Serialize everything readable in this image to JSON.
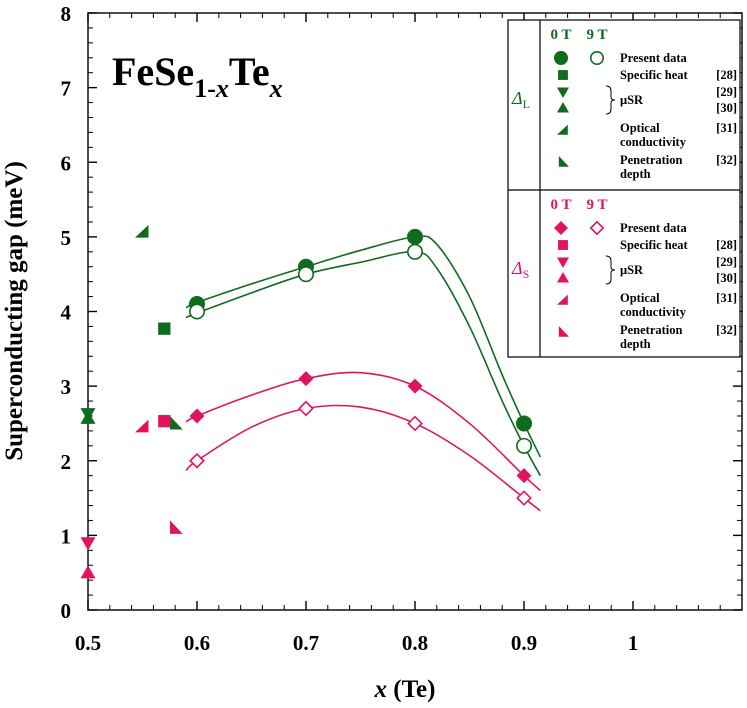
{
  "chart_data": {
    "type": "scatter",
    "title": "FeSe1-xTex",
    "title_parts": {
      "base": "FeSe",
      "sub1": "1-",
      "subx": "x",
      "te": "Te",
      "sub2": "x"
    },
    "xlabel": {
      "var": "x",
      "rest": " (Te)"
    },
    "ylabel": "Superconducting gap (meV)",
    "xlim": [
      0.5,
      1.1
    ],
    "ylim": [
      0,
      8
    ],
    "x_ticks": [
      "0.5",
      "0.6",
      "0.7",
      "0.8",
      "0.9",
      "1"
    ],
    "y_ticks": [
      "0",
      "1",
      "2",
      "3",
      "4",
      "5",
      "6",
      "7",
      "8"
    ],
    "colors": {
      "large": "#0f6b1e",
      "small": "#e0145e"
    },
    "series": [
      {
        "name": "ΔL Present data 0 T",
        "group": "large",
        "marker": "circle-filled",
        "x": [
          0.6,
          0.7,
          0.8,
          0.9
        ],
        "y": [
          4.1,
          4.6,
          5.0,
          2.5
        ]
      },
      {
        "name": "ΔL Present data 9 T",
        "group": "large",
        "marker": "circle-open",
        "x": [
          0.6,
          0.7,
          0.8,
          0.9
        ],
        "y": [
          4.0,
          4.5,
          4.8,
          2.2
        ]
      },
      {
        "name": "ΔS Present data 0 T",
        "group": "small",
        "marker": "diamond-filled",
        "x": [
          0.6,
          0.7,
          0.8,
          0.9
        ],
        "y": [
          2.6,
          3.1,
          3.0,
          1.8
        ]
      },
      {
        "name": "ΔS Present data 9 T",
        "group": "small",
        "marker": "diamond-open",
        "x": [
          0.6,
          0.7,
          0.8,
          0.9
        ],
        "y": [
          2.0,
          2.7,
          2.5,
          1.5
        ]
      },
      {
        "name": "ΔL Specific heat [28]",
        "group": "large",
        "marker": "square",
        "x": [
          0.57
        ],
        "y": [
          3.77
        ]
      },
      {
        "name": "ΔL μSR [29]",
        "group": "large",
        "marker": "triangle-down",
        "x": [
          0.5
        ],
        "y": [
          2.63
        ]
      },
      {
        "name": "ΔL μSR [30]",
        "group": "large",
        "marker": "triangle-up",
        "x": [
          0.5
        ],
        "y": [
          2.57
        ]
      },
      {
        "name": "ΔL Optical conductivity [31]",
        "group": "large",
        "marker": "half-triangle-optical",
        "x": [
          0.55
        ],
        "y": [
          5.07
        ]
      },
      {
        "name": "ΔL Penetration depth [32]",
        "group": "large",
        "marker": "half-triangle-penetration",
        "x": [
          0.58
        ],
        "y": [
          2.5
        ]
      },
      {
        "name": "ΔS Specific heat [28]",
        "group": "small",
        "marker": "square",
        "x": [
          0.57
        ],
        "y": [
          2.53
        ]
      },
      {
        "name": "ΔS μSR [29]",
        "group": "small",
        "marker": "triangle-down",
        "x": [
          0.5
        ],
        "y": [
          0.9
        ]
      },
      {
        "name": "ΔS μSR [30]",
        "group": "small",
        "marker": "triangle-up",
        "x": [
          0.5
        ],
        "y": [
          0.5
        ]
      },
      {
        "name": "ΔS Optical conductivity [31]",
        "group": "small",
        "marker": "half-triangle-optical",
        "x": [
          0.55
        ],
        "y": [
          2.46
        ]
      },
      {
        "name": "ΔS Penetration depth [32]",
        "group": "small",
        "marker": "half-triangle-penetration",
        "x": [
          0.58
        ],
        "y": [
          1.1
        ]
      }
    ],
    "fit_curves": [
      {
        "name": "ΔL 0 T fit",
        "group": "large",
        "x": [
          0.59,
          0.6,
          0.65,
          0.7,
          0.75,
          0.8,
          0.82,
          0.85,
          0.88,
          0.9,
          0.915
        ],
        "y": [
          4.05,
          4.12,
          4.37,
          4.6,
          4.82,
          5.0,
          4.9,
          4.2,
          3.15,
          2.5,
          2.05
        ]
      },
      {
        "name": "ΔL 9 T fit",
        "group": "large",
        "x": [
          0.59,
          0.6,
          0.65,
          0.7,
          0.75,
          0.8,
          0.82,
          0.85,
          0.88,
          0.9,
          0.915
        ],
        "y": [
          3.92,
          3.98,
          4.25,
          4.5,
          4.66,
          4.8,
          4.58,
          3.8,
          2.8,
          2.2,
          1.8
        ]
      },
      {
        "name": "ΔS 0 T fit",
        "group": "small",
        "x": [
          0.59,
          0.6,
          0.65,
          0.7,
          0.75,
          0.8,
          0.85,
          0.9,
          0.915
        ],
        "y": [
          2.52,
          2.6,
          2.88,
          3.1,
          3.18,
          3.0,
          2.5,
          1.8,
          1.6
        ]
      },
      {
        "name": "ΔS 9 T fit",
        "group": "small",
        "x": [
          0.59,
          0.6,
          0.65,
          0.7,
          0.75,
          0.8,
          0.85,
          0.9,
          0.915
        ],
        "y": [
          1.87,
          2.0,
          2.45,
          2.7,
          2.72,
          2.5,
          2.07,
          1.5,
          1.33
        ]
      }
    ],
    "legend": {
      "placement": "top-right",
      "col_0T": "0 T",
      "col_9T": "9 T",
      "groups": [
        {
          "key": "large",
          "symbol": "Δ",
          "sub": "L",
          "rows": [
            {
              "marker": "circle",
              "label": "Present data",
              "ref": ""
            },
            {
              "marker": "square",
              "label": "Specific heat",
              "ref": "[28]"
            },
            {
              "marker": "triangle-down",
              "label": "μSR",
              "ref": "[29]"
            },
            {
              "marker": "triangle-up",
              "label": "",
              "ref": "[30]"
            },
            {
              "marker": "half-triangle-optical",
              "label": "Optical",
              "label2": "conductivity",
              "ref": "[31]"
            },
            {
              "marker": "half-triangle-penetration",
              "label": "Penetration",
              "label2": "depth",
              "ref": "[32]"
            }
          ]
        },
        {
          "key": "small",
          "symbol": "Δ",
          "sub": "S",
          "rows": [
            {
              "marker": "diamond",
              "label": "Present data",
              "ref": ""
            },
            {
              "marker": "square",
              "label": "Specific heat",
              "ref": "[28]"
            },
            {
              "marker": "triangle-down",
              "label": "μSR",
              "ref": "[29]"
            },
            {
              "marker": "triangle-up",
              "label": "",
              "ref": "[30]"
            },
            {
              "marker": "half-triangle-optical",
              "label": "Optical",
              "label2": "conductivity",
              "ref": "[31]"
            },
            {
              "marker": "half-triangle-penetration",
              "label": "Penetration",
              "label2": "depth",
              "ref": "[32]"
            }
          ]
        }
      ]
    }
  }
}
